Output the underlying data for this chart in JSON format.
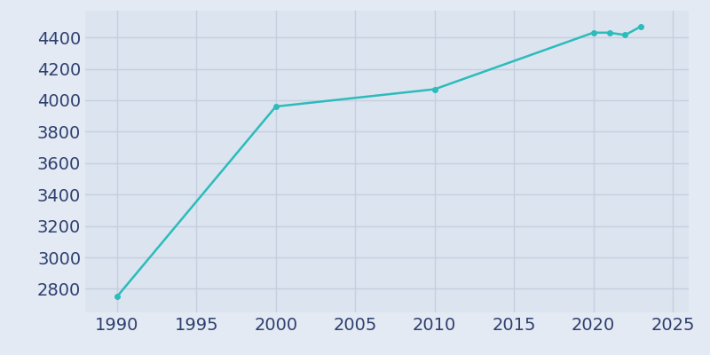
{
  "years": [
    1990,
    2000,
    2010,
    2020,
    2021,
    2022,
    2023
  ],
  "population": [
    2750,
    3960,
    4070,
    4430,
    4430,
    4415,
    4470
  ],
  "line_color": "#2bbcbb",
  "marker_color": "#2bbcbb",
  "bg_color": "#e4eaf4",
  "plot_bg_color": "#dce4f0",
  "grid_color": "#c5cfdf",
  "tick_color": "#2e3f6e",
  "xlim": [
    1988,
    2026
  ],
  "ylim": [
    2650,
    4570
  ],
  "xticks": [
    1990,
    1995,
    2000,
    2005,
    2010,
    2015,
    2020,
    2025
  ],
  "yticks": [
    2800,
    3000,
    3200,
    3400,
    3600,
    3800,
    4000,
    4200,
    4400
  ],
  "linewidth": 1.8,
  "marker_size": 4,
  "tick_fontsize": 14
}
